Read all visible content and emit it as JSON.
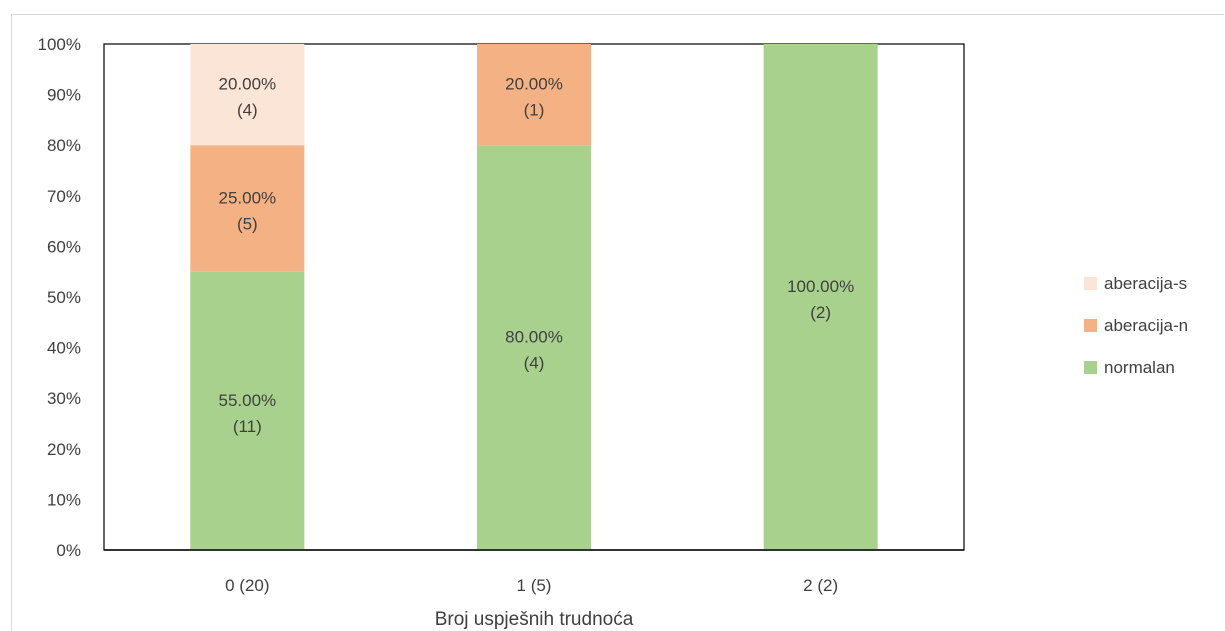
{
  "chart_data": {
    "type": "bar",
    "stacked": true,
    "categories": [
      "0 (20)",
      "1 (5)",
      "2 (2)"
    ],
    "series": [
      {
        "name": "normalan",
        "values": [
          55,
          80,
          100
        ],
        "counts": [
          11,
          4,
          2
        ],
        "color": "#a9d18e"
      },
      {
        "name": "aberacija-n",
        "values": [
          25,
          20,
          0
        ],
        "counts": [
          5,
          1,
          0
        ],
        "color": "#f4b183"
      },
      {
        "name": "aberacija-s",
        "values": [
          20,
          0,
          0
        ],
        "counts": [
          4,
          0,
          0
        ],
        "color": "#fbe5d6"
      }
    ],
    "labels": [
      {
        "series": 0,
        "category": 0,
        "pct": "55.00%",
        "count": "(11)"
      },
      {
        "series": 1,
        "category": 0,
        "pct": "25.00%",
        "count": "(5)"
      },
      {
        "series": 2,
        "category": 0,
        "pct": "20.00%",
        "count": "(4)"
      },
      {
        "series": 0,
        "category": 1,
        "pct": "80.00%",
        "count": "(4)"
      },
      {
        "series": 1,
        "category": 1,
        "pct": "20.00%",
        "count": "(1)"
      },
      {
        "series": 0,
        "category": 2,
        "pct": "100.00%",
        "count": "(2)"
      }
    ],
    "yticks": [
      "0%",
      "10%",
      "20%",
      "30%",
      "40%",
      "50%",
      "60%",
      "70%",
      "80%",
      "90%",
      "100%"
    ],
    "ylim": [
      0,
      100
    ],
    "title": "",
    "xlabel": "Broj uspješnih trudnoća",
    "ylabel": "",
    "legend": {
      "placement": "right",
      "order": [
        "aberacija-s",
        "aberacija-n",
        "normalan"
      ]
    },
    "grid": false
  }
}
